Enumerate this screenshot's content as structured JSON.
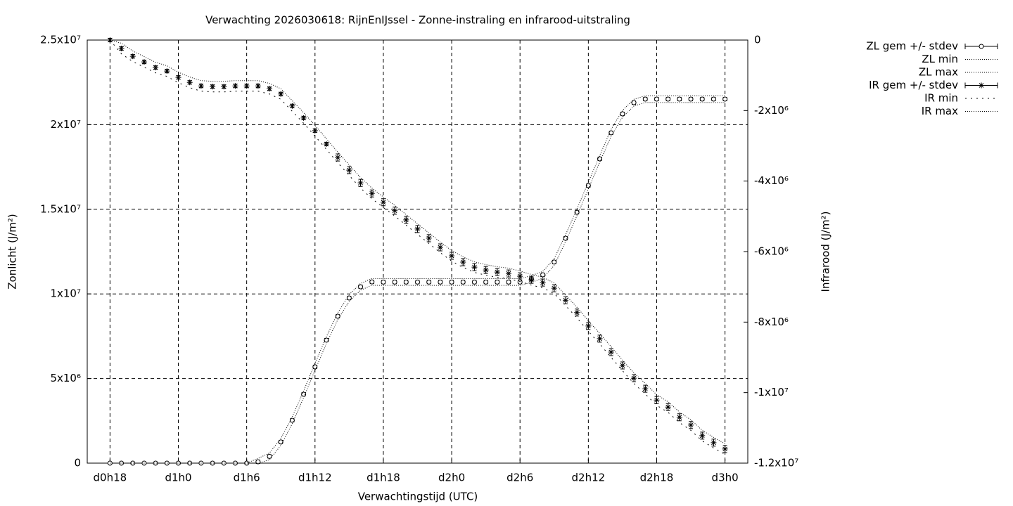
{
  "chart_data": {
    "type": "errorbar",
    "title": "Verwachting 2026030618: RijnEnIJssel - Zonne-instraling en infrarood-uitstraling",
    "x_label": "Verwachtingstijd (UTC)",
    "y_label": "Zonlicht (J/m²)",
    "y2_label": "Infrarood (J/m²)",
    "x": [
      18,
      19,
      20,
      21,
      22,
      23,
      24,
      25,
      26,
      27,
      28,
      29,
      30,
      31,
      32,
      33,
      34,
      35,
      36,
      37,
      38,
      39,
      40,
      41,
      42,
      43,
      44,
      45,
      46,
      47,
      48,
      49,
      50,
      51,
      52,
      53,
      54,
      55,
      56,
      57,
      58,
      59,
      60,
      61,
      62,
      63,
      64,
      65,
      66,
      67,
      68,
      69,
      70,
      71,
      72
    ],
    "xlim": [
      16,
      74
    ],
    "xticks": [
      {
        "value": 18,
        "label": "d0h18"
      },
      {
        "value": 24,
        "label": "d1h0"
      },
      {
        "value": 30,
        "label": "d1h6"
      },
      {
        "value": 36,
        "label": "d1h12"
      },
      {
        "value": 42,
        "label": "d1h18"
      },
      {
        "value": 48,
        "label": "d2h0"
      },
      {
        "value": 54,
        "label": "d2h6"
      },
      {
        "value": 60,
        "label": "d2h12"
      },
      {
        "value": 66,
        "label": "d2h18"
      },
      {
        "value": 72,
        "label": "d3h0"
      }
    ],
    "ylim": [
      0,
      25000000
    ],
    "yticks": [
      0,
      {
        "value": 5000000,
        "label": "5x10⁶"
      },
      {
        "value": 10000000,
        "label": "1x10⁷"
      },
      {
        "value": 15000000,
        "label": "1.5x10⁷"
      },
      {
        "value": 20000000,
        "label": "2x10⁷"
      },
      {
        "value": 25000000,
        "label": "2.5x10⁷"
      }
    ],
    "y2lim": [
      -12000000,
      0
    ],
    "y2ticks": [
      0,
      {
        "value": -2000000,
        "label": "-2x10⁶"
      },
      {
        "value": -4000000,
        "label": "-4x10⁶"
      },
      {
        "value": -6000000,
        "label": "-6x10⁶"
      },
      {
        "value": -8000000,
        "label": "-8x10⁶"
      },
      {
        "value": -10000000,
        "label": "-1x10⁷"
      },
      {
        "value": -12000000,
        "label": "-1.2x10⁷"
      }
    ],
    "grid": true,
    "legend": "outside-right-top",
    "series": [
      {
        "name": "ZL gem +/- stdev",
        "color": "#000000",
        "style": "errorbar",
        "marker": "circle",
        "axis": "y",
        "values": [
          0,
          0,
          0,
          0,
          0,
          0,
          0,
          0,
          0,
          0,
          0,
          0,
          0,
          80000,
          400000,
          1250000,
          2530000,
          4070000,
          5690000,
          7270000,
          8680000,
          9760000,
          10420000,
          10710000,
          10700000,
          10700000,
          10700000,
          10700000,
          10700000,
          10700000,
          10700000,
          10700000,
          10700000,
          10700000,
          10700000,
          10700000,
          10700000,
          10880000,
          11130000,
          11880000,
          13290000,
          14820000,
          16400000,
          17980000,
          19520000,
          20640000,
          21300000,
          21510000,
          21510000,
          21510000,
          21510000,
          21510000,
          21510000,
          21510000,
          21510000
        ],
        "errors": [
          0,
          0,
          0,
          0,
          0,
          0,
          0,
          0,
          0,
          0,
          0,
          0,
          0,
          100000,
          100000,
          100000,
          100000,
          100000,
          100000,
          100000,
          100000,
          100000,
          100000,
          100000,
          100000,
          100000,
          100000,
          100000,
          100000,
          100000,
          100000,
          100000,
          100000,
          100000,
          100000,
          100000,
          100000,
          100000,
          100000,
          100000,
          100000,
          100000,
          100000,
          100000,
          100000,
          100000,
          100000,
          100000,
          100000,
          100000,
          100000,
          100000,
          100000,
          100000,
          100000
        ]
      },
      {
        "name": "ZL min",
        "color": "#000000",
        "style": "dotted",
        "dash": "1 2",
        "axis": "y",
        "values": [
          0,
          0,
          0,
          0,
          0,
          0,
          0,
          0,
          0,
          0,
          0,
          0,
          0,
          0,
          200000,
          1050000,
          2330000,
          3870000,
          5490000,
          7070000,
          8480000,
          9560000,
          10220000,
          10510000,
          10500000,
          10500000,
          10500000,
          10500000,
          10500000,
          10500000,
          10500000,
          10500000,
          10500000,
          10500000,
          10500000,
          10500000,
          10500000,
          10680000,
          10930000,
          11680000,
          13090000,
          14620000,
          16200000,
          17780000,
          19320000,
          20440000,
          21100000,
          21310000,
          21310000,
          21310000,
          21310000,
          21310000,
          21310000,
          21310000,
          21310000
        ]
      },
      {
        "name": "ZL max",
        "color": "#000000",
        "style": "dotted",
        "dash": "1 2",
        "axis": "y",
        "values": [
          0,
          0,
          0,
          0,
          0,
          0,
          0,
          0,
          0,
          0,
          0,
          0,
          0,
          280000,
          600000,
          1450000,
          2730000,
          4270000,
          5890000,
          7470000,
          8880000,
          9960000,
          10620000,
          10910000,
          10900000,
          10900000,
          10900000,
          10900000,
          10900000,
          10900000,
          10900000,
          10900000,
          10900000,
          10900000,
          10900000,
          10900000,
          10900000,
          11080000,
          11330000,
          12080000,
          13490000,
          15020000,
          16600000,
          18180000,
          19720000,
          20840000,
          21500000,
          21710000,
          21710000,
          21710000,
          21710000,
          21710000,
          21710000,
          21710000,
          21710000
        ]
      },
      {
        "name": "IR gem +/- stdev",
        "color": "#000000",
        "style": "errorbar",
        "marker": "star",
        "axis": "y2",
        "values": [
          0,
          -240000,
          -460000,
          -620000,
          -780000,
          -880000,
          -1060000,
          -1200000,
          -1300000,
          -1320000,
          -1320000,
          -1300000,
          -1300000,
          -1300000,
          -1380000,
          -1530000,
          -1870000,
          -2210000,
          -2570000,
          -2950000,
          -3330000,
          -3690000,
          -4050000,
          -4350000,
          -4600000,
          -4840000,
          -5100000,
          -5360000,
          -5620000,
          -5880000,
          -6120000,
          -6300000,
          -6440000,
          -6520000,
          -6580000,
          -6620000,
          -6700000,
          -6800000,
          -6880000,
          -7040000,
          -7380000,
          -7730000,
          -8110000,
          -8470000,
          -8850000,
          -9230000,
          -9590000,
          -9890000,
          -10210000,
          -10410000,
          -10700000,
          -10920000,
          -11220000,
          -11420000,
          -11600000
        ],
        "errors": [
          50000,
          50000,
          50000,
          50000,
          50000,
          50000,
          50000,
          50000,
          50000,
          50000,
          50000,
          50000,
          50000,
          50000,
          50000,
          50000,
          50000,
          50000,
          50000,
          50000,
          100000,
          100000,
          100000,
          100000,
          100000,
          100000,
          100000,
          100000,
          100000,
          100000,
          100000,
          100000,
          100000,
          100000,
          100000,
          100000,
          100000,
          100000,
          100000,
          100000,
          100000,
          100000,
          100000,
          100000,
          100000,
          100000,
          100000,
          100000,
          100000,
          100000,
          100000,
          100000,
          100000,
          100000,
          100000
        ]
      },
      {
        "name": "IR min",
        "color": "#000000",
        "style": "dotted",
        "dash": "2 6",
        "axis": "y2",
        "values": [
          0,
          -390000,
          -610000,
          -770000,
          -930000,
          -1030000,
          -1210000,
          -1350000,
          -1450000,
          -1470000,
          -1470000,
          -1450000,
          -1450000,
          -1450000,
          -1530000,
          -1680000,
          -2020000,
          -2360000,
          -2720000,
          -3100000,
          -3480000,
          -3840000,
          -4200000,
          -4500000,
          -4750000,
          -4990000,
          -5250000,
          -5510000,
          -5770000,
          -6030000,
          -6270000,
          -6450000,
          -6590000,
          -6670000,
          -6730000,
          -6770000,
          -6850000,
          -6950000,
          -7030000,
          -7190000,
          -7530000,
          -7880000,
          -8260000,
          -8620000,
          -9000000,
          -9380000,
          -9740000,
          -10040000,
          -10360000,
          -10560000,
          -10850000,
          -11070000,
          -11370000,
          -11570000,
          -11750000
        ]
      },
      {
        "name": "IR max",
        "color": "#000000",
        "style": "dotted",
        "dash": "1 2",
        "axis": "y2",
        "values": [
          0,
          -90000,
          -310000,
          -470000,
          -630000,
          -730000,
          -910000,
          -1050000,
          -1150000,
          -1170000,
          -1170000,
          -1150000,
          -1150000,
          -1150000,
          -1230000,
          -1380000,
          -1720000,
          -2060000,
          -2420000,
          -2800000,
          -3180000,
          -3540000,
          -3900000,
          -4200000,
          -4450000,
          -4690000,
          -4950000,
          -5210000,
          -5470000,
          -5730000,
          -5970000,
          -6150000,
          -6290000,
          -6370000,
          -6430000,
          -6470000,
          -6550000,
          -6650000,
          -6730000,
          -6890000,
          -7230000,
          -7580000,
          -7960000,
          -8320000,
          -8700000,
          -9080000,
          -9440000,
          -9740000,
          -10060000,
          -10260000,
          -10550000,
          -10770000,
          -11070000,
          -11270000,
          -11450000
        ]
      }
    ]
  }
}
